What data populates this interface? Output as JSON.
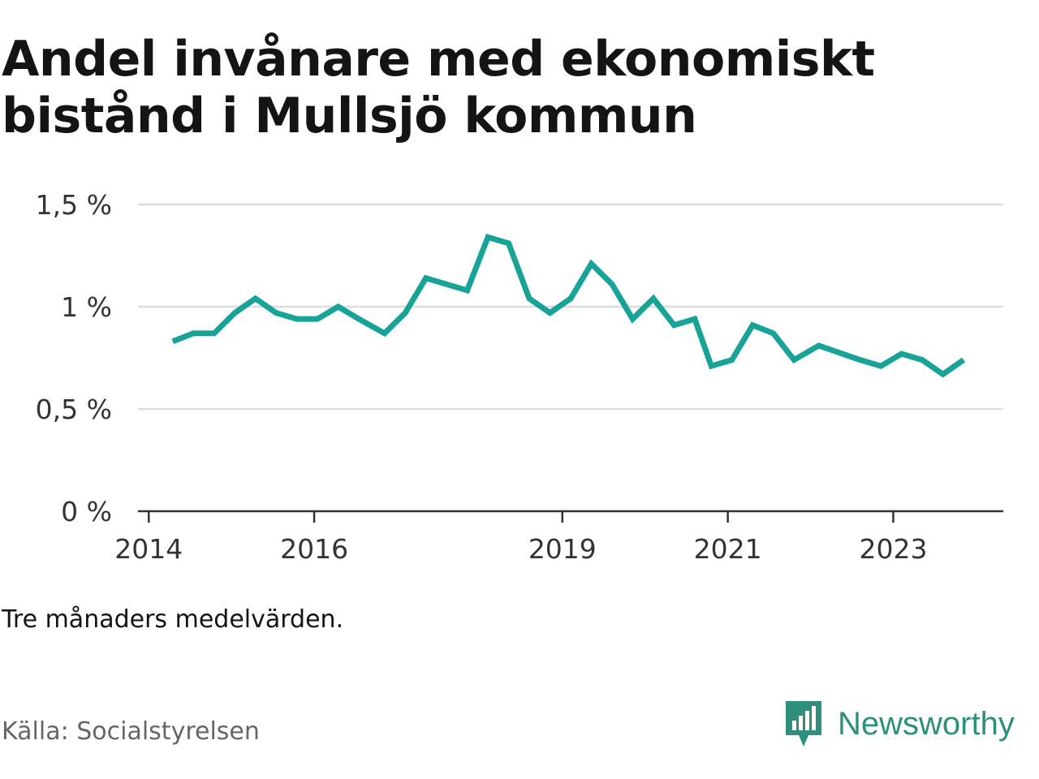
{
  "title": "Andel invånare med ekonomiskt bistånd i Mullsjö kommun",
  "note": "Tre månaders medelvärden.",
  "source": "Källa: Socialstyrelsen",
  "brand": {
    "name": "Newsworthy",
    "icon": "newsworthy-chart-icon"
  },
  "colors": {
    "line": "#17a398",
    "grid": "#dddddd",
    "axis": "#333333",
    "brand": "#2e8f7c"
  },
  "chart_data": {
    "type": "line",
    "title": "Andel invånare med ekonomiskt bistånd i Mullsjö kommun",
    "xlabel": "",
    "ylabel": "",
    "ylim": [
      0,
      1.5
    ],
    "yticks": [
      {
        "value": 0,
        "label": "0 %"
      },
      {
        "value": 0.5,
        "label": "0,5 %"
      },
      {
        "value": 1.0,
        "label": "1 %"
      },
      {
        "value": 1.5,
        "label": "1,5 %"
      }
    ],
    "xticks": [
      {
        "value": 2014.0,
        "label": "2014"
      },
      {
        "value": 2016.0,
        "label": "2016"
      },
      {
        "value": 2019.0,
        "label": "2019"
      },
      {
        "value": 2021.0,
        "label": "2021"
      },
      {
        "value": 2023.0,
        "label": "2023"
      }
    ],
    "xlim": [
      2013.87,
      2024.33
    ],
    "grid": true,
    "series": [
      {
        "name": "Andel invånare med ekonomiskt bistånd",
        "x": [
          2014.29,
          2014.54,
          2014.79,
          2015.04,
          2015.29,
          2015.54,
          2015.79,
          2016.04,
          2016.29,
          2016.54,
          2016.85,
          2017.1,
          2017.35,
          2017.6,
          2017.85,
          2018.1,
          2018.35,
          2018.6,
          2018.85,
          2019.1,
          2019.35,
          2019.6,
          2019.85,
          2020.1,
          2020.35,
          2020.6,
          2020.8,
          2021.05,
          2021.3,
          2021.55,
          2021.8,
          2022.1,
          2022.6,
          2022.85,
          2023.1,
          2023.35,
          2023.6,
          2023.85
        ],
        "values": [
          0.83,
          0.87,
          0.87,
          0.97,
          1.04,
          0.97,
          0.94,
          0.94,
          1.0,
          0.94,
          0.87,
          0.97,
          1.14,
          1.11,
          1.08,
          1.34,
          1.31,
          1.04,
          0.97,
          1.04,
          1.21,
          1.11,
          0.94,
          1.04,
          0.91,
          0.94,
          0.71,
          0.74,
          0.91,
          0.87,
          0.74,
          0.81,
          0.74,
          0.71,
          0.77,
          0.74,
          0.67,
          0.74
        ]
      }
    ]
  }
}
